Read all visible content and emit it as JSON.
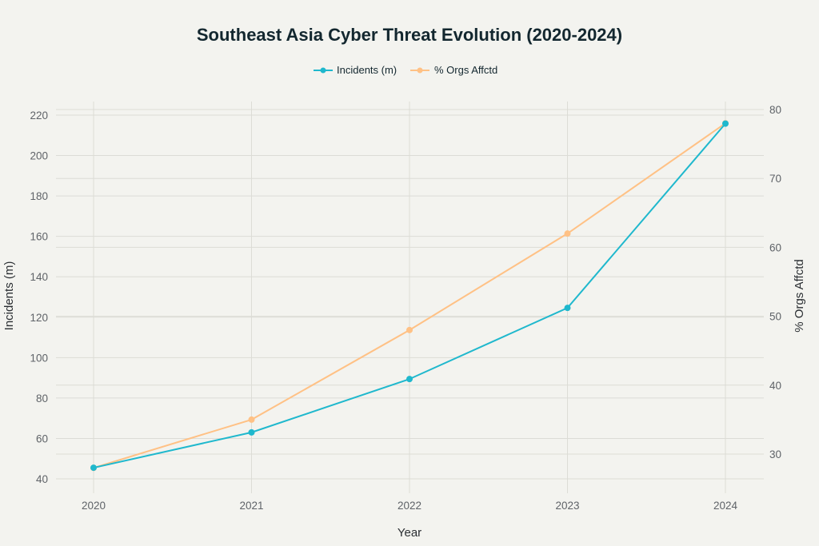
{
  "chart_data": {
    "type": "line",
    "title": "Southeast Asia Cyber Threat Evolution (2020-2024)",
    "xlabel": "Year",
    "ylabel": "Incidents (m)",
    "y2label": "% Orgs Affctd",
    "categories": [
      "2020",
      "2021",
      "2022",
      "2023",
      "2024"
    ],
    "series": [
      {
        "name": "Incidents (m)",
        "axis": "left",
        "color": "#1fb8cd",
        "values": [
          45.5,
          63,
          89.4,
          124.6,
          215.8
        ]
      },
      {
        "name": "% Orgs Affctd",
        "axis": "right",
        "color": "#ffc185",
        "values": [
          28,
          35,
          48,
          62,
          78
        ]
      }
    ],
    "yticks": [
      "40",
      "60",
      "80",
      "100",
      "120",
      "140",
      "160",
      "180",
      "200",
      "220"
    ],
    "y2ticks": [
      "30",
      "40",
      "50",
      "60",
      "70",
      "80"
    ],
    "ylim": [
      40,
      220
    ],
    "y2lim": [
      30,
      80
    ],
    "grid": true,
    "legend_position": "top-center"
  }
}
